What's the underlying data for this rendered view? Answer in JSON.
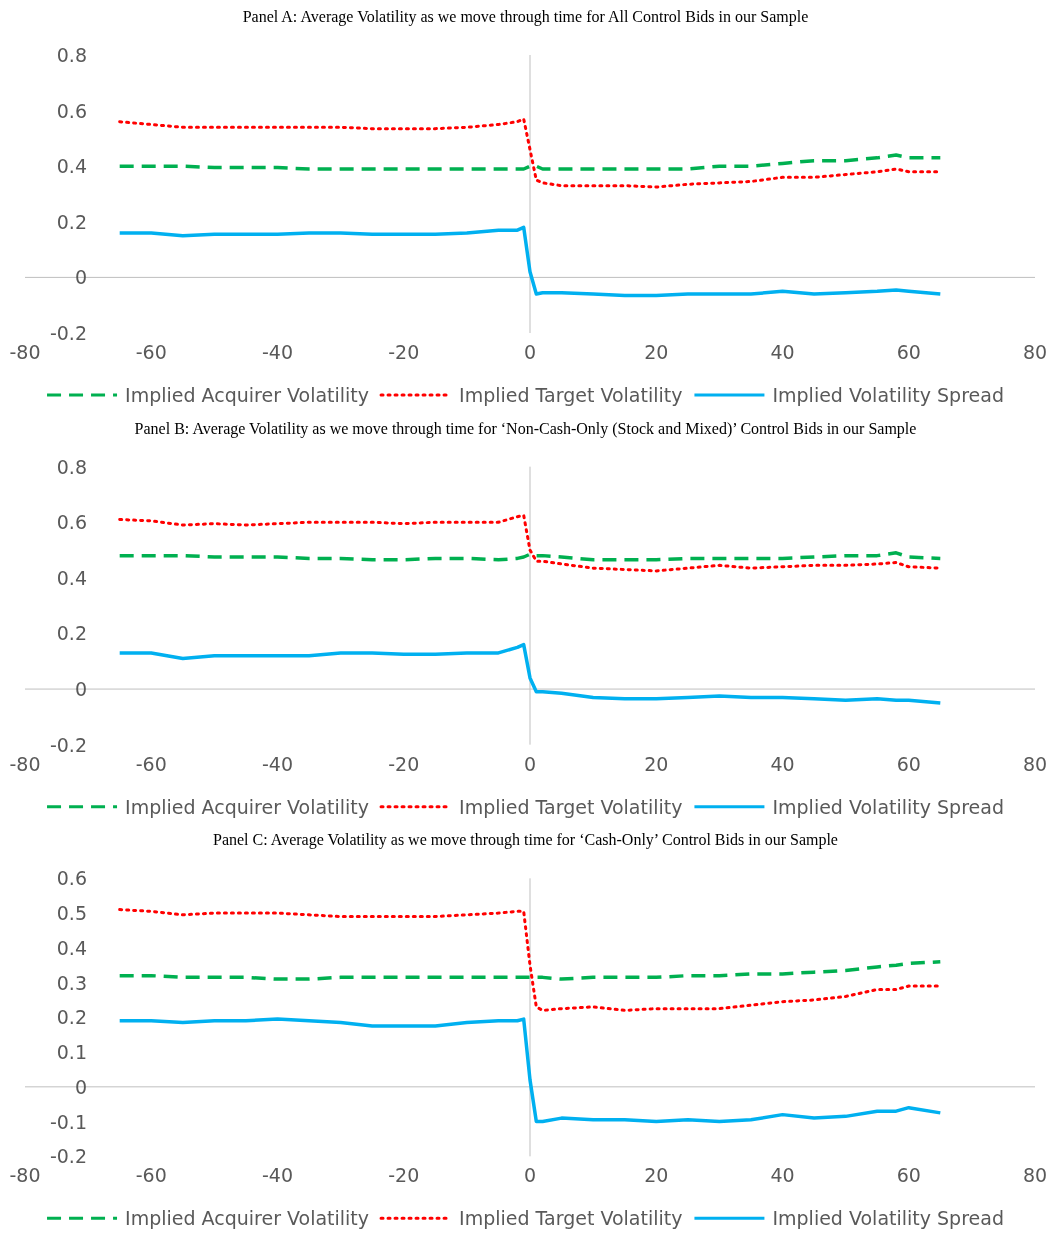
{
  "chart_data": [
    {
      "type": "line",
      "title": "Panel A: Average Volatility as we move through time for All Control Bids in our Sample",
      "xlim": [
        -80,
        80
      ],
      "xticks": [
        -80,
        -60,
        -40,
        -20,
        0,
        20,
        40,
        60,
        80
      ],
      "ylim": [
        -0.2,
        0.8
      ],
      "yticks": [
        -0.2,
        0,
        0.2,
        0.4,
        0.6,
        0.8
      ],
      "legend": "bottom",
      "x": [
        -65,
        -60,
        -55,
        -50,
        -45,
        -40,
        -35,
        -30,
        -25,
        -20,
        -15,
        -10,
        -5,
        -2,
        -1,
        0,
        1,
        2,
        5,
        10,
        15,
        20,
        25,
        30,
        35,
        40,
        45,
        50,
        55,
        58,
        60,
        65
      ],
      "series": [
        {
          "name": "Implied Acquirer Volatility",
          "color": "#00b050",
          "line_style": "dashed",
          "values": [
            0.4,
            0.4,
            0.4,
            0.395,
            0.395,
            0.395,
            0.39,
            0.39,
            0.39,
            0.39,
            0.39,
            0.39,
            0.39,
            0.39,
            0.39,
            0.4,
            0.4,
            0.39,
            0.39,
            0.39,
            0.39,
            0.39,
            0.39,
            0.4,
            0.4,
            0.41,
            0.42,
            0.42,
            0.43,
            0.44,
            0.43,
            0.43
          ]
        },
        {
          "name": "Implied Target Volatility",
          "color": "#ff0000",
          "line_style": "dotted",
          "values": [
            0.56,
            0.55,
            0.54,
            0.54,
            0.54,
            0.54,
            0.54,
            0.54,
            0.535,
            0.535,
            0.535,
            0.54,
            0.55,
            0.56,
            0.57,
            0.46,
            0.35,
            0.34,
            0.33,
            0.33,
            0.33,
            0.325,
            0.335,
            0.34,
            0.345,
            0.36,
            0.36,
            0.37,
            0.38,
            0.39,
            0.38,
            0.38
          ]
        },
        {
          "name": "Implied Volatility Spread",
          "color": "#00b0f0",
          "line_style": "solid",
          "values": [
            0.16,
            0.16,
            0.15,
            0.155,
            0.155,
            0.155,
            0.16,
            0.16,
            0.155,
            0.155,
            0.155,
            0.16,
            0.17,
            0.17,
            0.18,
            0.02,
            -0.06,
            -0.055,
            -0.055,
            -0.06,
            -0.065,
            -0.065,
            -0.06,
            -0.06,
            -0.06,
            -0.05,
            -0.06,
            -0.055,
            -0.05,
            -0.045,
            -0.05,
            -0.06
          ]
        }
      ]
    },
    {
      "type": "line",
      "title": "Panel B: Average Volatility as we move through time for ‘Non-Cash-Only (Stock and Mixed)’ Control Bids in our Sample",
      "xlim": [
        -80,
        80
      ],
      "xticks": [
        -80,
        -60,
        -40,
        -20,
        0,
        20,
        40,
        60,
        80
      ],
      "ylim": [
        -0.2,
        0.8
      ],
      "yticks": [
        -0.2,
        0,
        0.2,
        0.4,
        0.6,
        0.8
      ],
      "legend": "bottom",
      "x": [
        -65,
        -60,
        -55,
        -50,
        -45,
        -40,
        -35,
        -30,
        -25,
        -20,
        -15,
        -10,
        -5,
        -2,
        -1,
        0,
        1,
        2,
        5,
        10,
        15,
        20,
        25,
        30,
        35,
        40,
        45,
        50,
        55,
        58,
        60,
        65
      ],
      "series": [
        {
          "name": "Implied Acquirer Volatility",
          "color": "#00b050",
          "line_style": "dashed",
          "values": [
            0.48,
            0.48,
            0.48,
            0.475,
            0.475,
            0.475,
            0.47,
            0.47,
            0.465,
            0.465,
            0.47,
            0.47,
            0.465,
            0.47,
            0.475,
            0.485,
            0.48,
            0.48,
            0.475,
            0.465,
            0.465,
            0.465,
            0.47,
            0.47,
            0.47,
            0.47,
            0.475,
            0.48,
            0.48,
            0.49,
            0.475,
            0.47
          ]
        },
        {
          "name": "Implied Target Volatility",
          "color": "#ff0000",
          "line_style": "dotted",
          "values": [
            0.61,
            0.605,
            0.59,
            0.595,
            0.59,
            0.595,
            0.6,
            0.6,
            0.6,
            0.595,
            0.6,
            0.6,
            0.6,
            0.62,
            0.625,
            0.5,
            0.46,
            0.46,
            0.45,
            0.435,
            0.43,
            0.425,
            0.435,
            0.445,
            0.435,
            0.44,
            0.445,
            0.445,
            0.45,
            0.455,
            0.44,
            0.435
          ]
        },
        {
          "name": "Implied Volatility Spread",
          "color": "#00b0f0",
          "line_style": "solid",
          "values": [
            0.13,
            0.13,
            0.11,
            0.12,
            0.12,
            0.12,
            0.12,
            0.13,
            0.13,
            0.125,
            0.125,
            0.13,
            0.13,
            0.15,
            0.16,
            0.04,
            -0.01,
            -0.01,
            -0.015,
            -0.03,
            -0.035,
            -0.035,
            -0.03,
            -0.025,
            -0.03,
            -0.03,
            -0.035,
            -0.04,
            -0.035,
            -0.04,
            -0.04,
            -0.05
          ]
        }
      ]
    },
    {
      "type": "line",
      "title": "Panel C: Average Volatility as we move through time for ‘Cash-Only’ Control Bids in our Sample",
      "xlim": [
        -80,
        80
      ],
      "xticks": [
        -80,
        -60,
        -40,
        -20,
        0,
        20,
        40,
        60,
        80
      ],
      "ylim": [
        -0.2,
        0.6
      ],
      "yticks": [
        -0.2,
        -0.1,
        0,
        0.1,
        0.2,
        0.3,
        0.4,
        0.5,
        0.6
      ],
      "legend": "bottom",
      "x": [
        -65,
        -60,
        -55,
        -50,
        -45,
        -40,
        -35,
        -30,
        -25,
        -20,
        -15,
        -10,
        -5,
        -2,
        -1,
        0,
        1,
        2,
        5,
        10,
        15,
        20,
        25,
        30,
        35,
        40,
        45,
        50,
        55,
        58,
        60,
        65
      ],
      "series": [
        {
          "name": "Implied Acquirer Volatility",
          "color": "#00b050",
          "line_style": "dashed",
          "values": [
            0.32,
            0.32,
            0.315,
            0.315,
            0.315,
            0.31,
            0.31,
            0.315,
            0.315,
            0.315,
            0.315,
            0.315,
            0.315,
            0.315,
            0.315,
            0.315,
            0.315,
            0.315,
            0.31,
            0.315,
            0.315,
            0.315,
            0.32,
            0.32,
            0.325,
            0.325,
            0.33,
            0.335,
            0.345,
            0.35,
            0.355,
            0.36
          ]
        },
        {
          "name": "Implied Target Volatility",
          "color": "#ff0000",
          "line_style": "dotted",
          "values": [
            0.51,
            0.505,
            0.495,
            0.5,
            0.5,
            0.5,
            0.495,
            0.49,
            0.49,
            0.49,
            0.49,
            0.495,
            0.5,
            0.505,
            0.505,
            0.35,
            0.23,
            0.22,
            0.225,
            0.23,
            0.22,
            0.225,
            0.225,
            0.225,
            0.235,
            0.245,
            0.25,
            0.26,
            0.28,
            0.28,
            0.29,
            0.29
          ]
        },
        {
          "name": "Implied Volatility Spread",
          "color": "#00b0f0",
          "line_style": "solid",
          "values": [
            0.19,
            0.19,
            0.185,
            0.19,
            0.19,
            0.195,
            0.19,
            0.185,
            0.175,
            0.175,
            0.175,
            0.185,
            0.19,
            0.19,
            0.195,
            0.02,
            -0.1,
            -0.1,
            -0.09,
            -0.095,
            -0.095,
            -0.1,
            -0.095,
            -0.1,
            -0.095,
            -0.08,
            -0.09,
            -0.085,
            -0.07,
            -0.07,
            -0.06,
            -0.075
          ]
        }
      ]
    }
  ]
}
